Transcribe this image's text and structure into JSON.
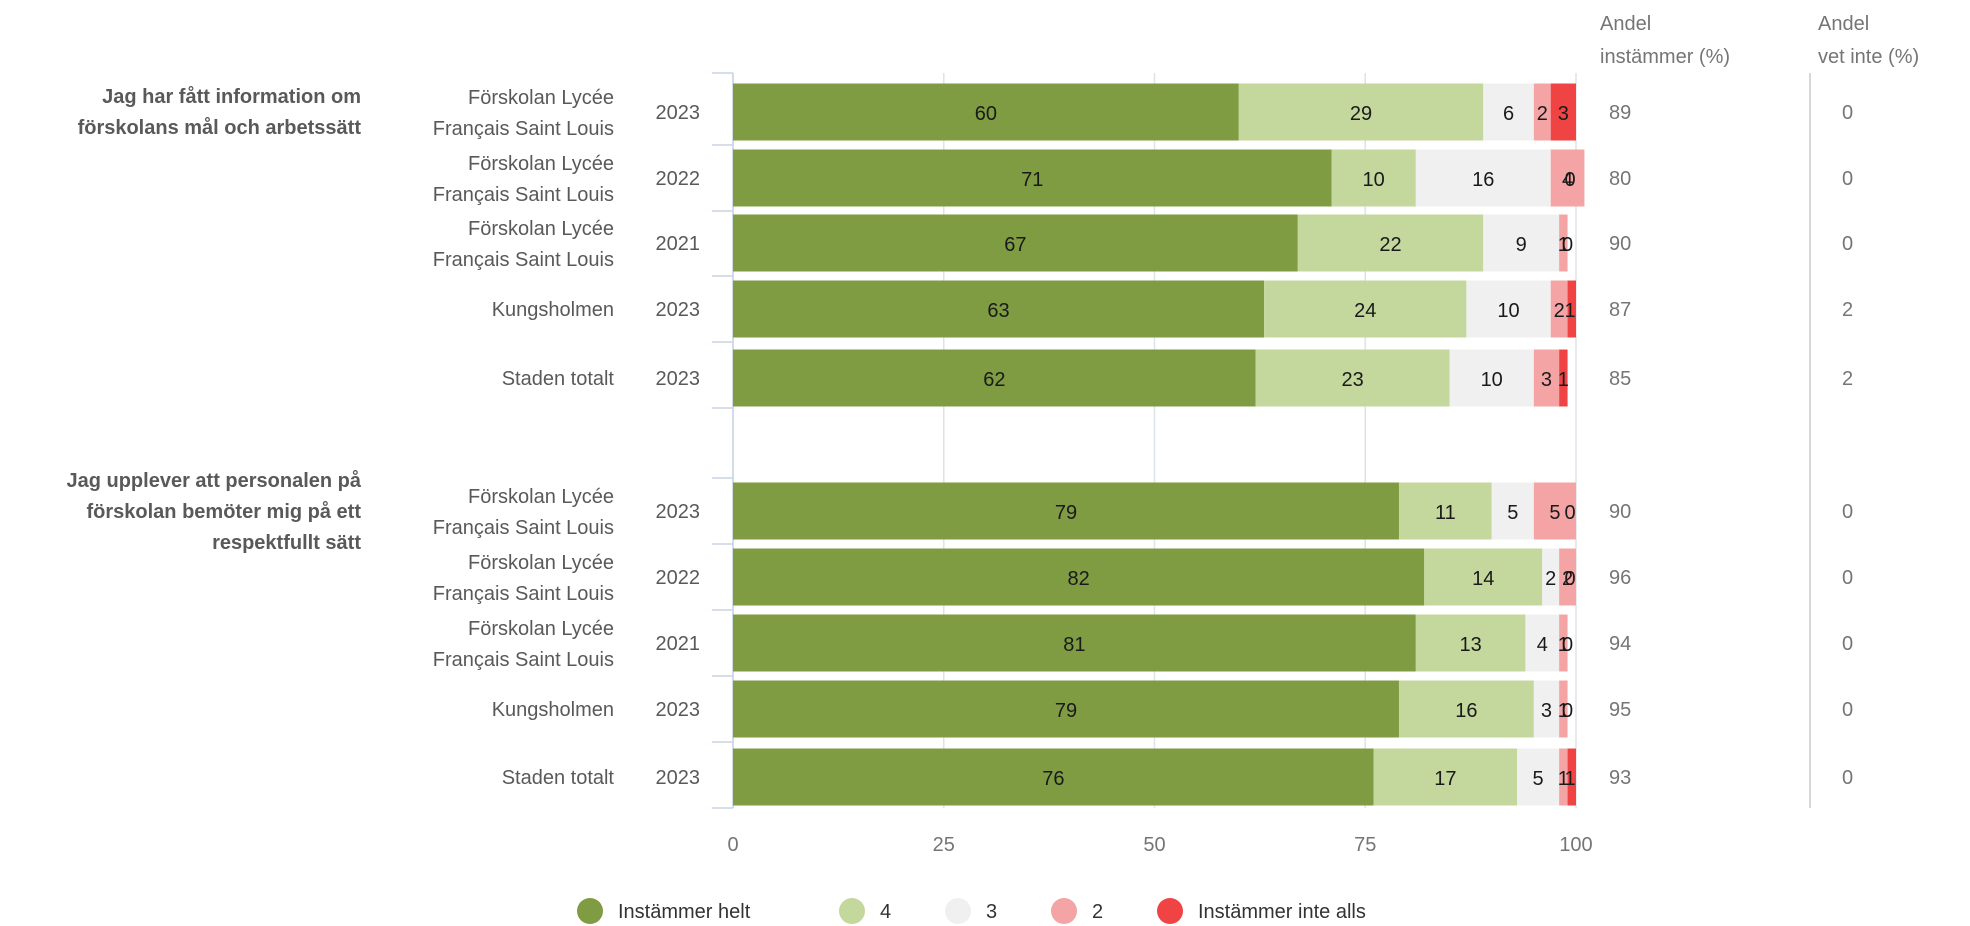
{
  "chart_data": {
    "type": "bar",
    "orientation": "horizontal",
    "stacked": true,
    "xlim": [
      0,
      100
    ],
    "xticks": [
      "0",
      "25",
      "50",
      "75",
      "100"
    ],
    "grid": true,
    "legend_position": "bottom",
    "colors": {
      "Instämmer helt": "#7f9c42",
      "4": "#c4d79c",
      "3": "#f0f0f0",
      "2": "#f4a4a4",
      "Instämmer inte alls": "#f04444"
    },
    "legend": [
      "Instämmer helt",
      "4",
      "3",
      "2",
      "Instämmer inte alls"
    ],
    "side_headers": {
      "agree_line1": "Andel",
      "agree_line2": "instämmer (%)",
      "dontknow_line1": "Andel",
      "dontknow_line2": "vet inte (%)"
    },
    "groups": [
      {
        "question_lines": [
          "Jag har fått information om",
          "förskolans mål och arbetssätt"
        ],
        "rows": [
          {
            "label_lines": [
              "Förskolan Lycée",
              "Français Saint Louis"
            ],
            "year": "2023",
            "values": [
              60,
              29,
              6,
              2,
              3
            ],
            "agree": "89",
            "dont_know": "0"
          },
          {
            "label_lines": [
              "Förskolan Lycée",
              "Français Saint Louis"
            ],
            "year": "2022",
            "values": [
              71,
              10,
              16,
              4,
              0
            ],
            "agree": "80",
            "dont_know": "0"
          },
          {
            "label_lines": [
              "Förskolan Lycée",
              "Français Saint Louis"
            ],
            "year": "2021",
            "values": [
              67,
              22,
              9,
              1,
              0
            ],
            "agree": "90",
            "dont_know": "0"
          },
          {
            "label_lines": [
              "Kungsholmen"
            ],
            "year": "2023",
            "values": [
              63,
              24,
              10,
              2,
              1
            ],
            "agree": "87",
            "dont_know": "2"
          },
          {
            "label_lines": [
              "Staden totalt"
            ],
            "year": "2023",
            "values": [
              62,
              23,
              10,
              3,
              1
            ],
            "agree": "85",
            "dont_know": "2"
          }
        ]
      },
      {
        "question_lines": [
          "Jag upplever att personalen på",
          "förskolan bemöter mig på ett",
          "respektfullt sätt"
        ],
        "rows": [
          {
            "label_lines": [
              "Förskolan Lycée",
              "Français Saint Louis"
            ],
            "year": "2023",
            "values": [
              79,
              11,
              5,
              5,
              0
            ],
            "agree": "90",
            "dont_know": "0"
          },
          {
            "label_lines": [
              "Förskolan Lycée",
              "Français Saint Louis"
            ],
            "year": "2022",
            "values": [
              82,
              14,
              2,
              2,
              0
            ],
            "agree": "96",
            "dont_know": "0"
          },
          {
            "label_lines": [
              "Förskolan Lycée",
              "Français Saint Louis"
            ],
            "year": "2021",
            "values": [
              81,
              13,
              4,
              1,
              0
            ],
            "agree": "94",
            "dont_know": "0"
          },
          {
            "label_lines": [
              "Kungsholmen"
            ],
            "year": "2023",
            "values": [
              79,
              16,
              3,
              1,
              0
            ],
            "agree": "95",
            "dont_know": "0"
          },
          {
            "label_lines": [
              "Staden totalt"
            ],
            "year": "2023",
            "values": [
              76,
              17,
              5,
              1,
              1
            ],
            "agree": "93",
            "dont_know": "0"
          }
        ]
      }
    ]
  }
}
